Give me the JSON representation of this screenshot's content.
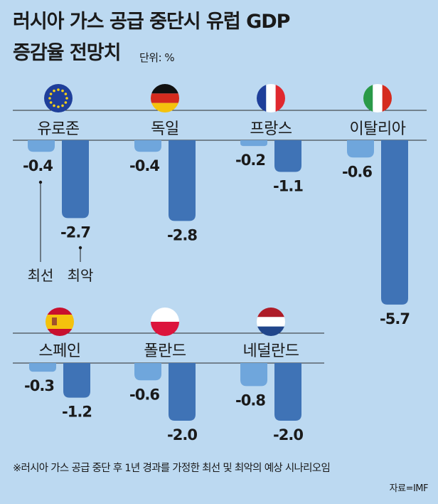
{
  "title_line1": "러시아 가스 공급 중단시 유럽 GDP",
  "title_line2": "증감율 전망치",
  "unit": "단위: %",
  "legend": {
    "best": "최선",
    "worst": "최악"
  },
  "footnote": "※러시아 가스 공급 중단 후 1년 경과를 가정한 최선 및 최악의 예상 시나리오임",
  "source": "자료=IMF",
  "colors": {
    "best": "#6fa6dc",
    "worst": "#3f73b6",
    "background": "#bcd9f1"
  },
  "chart_data": {
    "type": "bar",
    "categories": [
      "유로존",
      "독일",
      "프랑스",
      "이탈리아",
      "스페인",
      "폴란드",
      "네덜란드"
    ],
    "series": [
      {
        "name": "최선",
        "values": [
          -0.4,
          -0.4,
          -0.2,
          -0.6,
          -0.3,
          -0.6,
          -0.8
        ]
      },
      {
        "name": "최악",
        "values": [
          -2.7,
          -2.8,
          -1.1,
          -5.7,
          -1.2,
          -2.0,
          -2.0
        ]
      }
    ],
    "value_labels_best": [
      "-0.4",
      "-0.4",
      "-0.2",
      "-0.6",
      "-0.3",
      "-0.6",
      "-0.8"
    ],
    "value_labels_worst": [
      "-2.7",
      "-2.8",
      "-1.1",
      "-5.7",
      "-1.2",
      "-2.0",
      "-2.0"
    ],
    "flags": [
      "eu-flag-icon",
      "germany-flag-icon",
      "france-flag-icon",
      "italy-flag-icon",
      "spain-flag-icon",
      "poland-flag-icon",
      "netherlands-flag-icon"
    ]
  }
}
